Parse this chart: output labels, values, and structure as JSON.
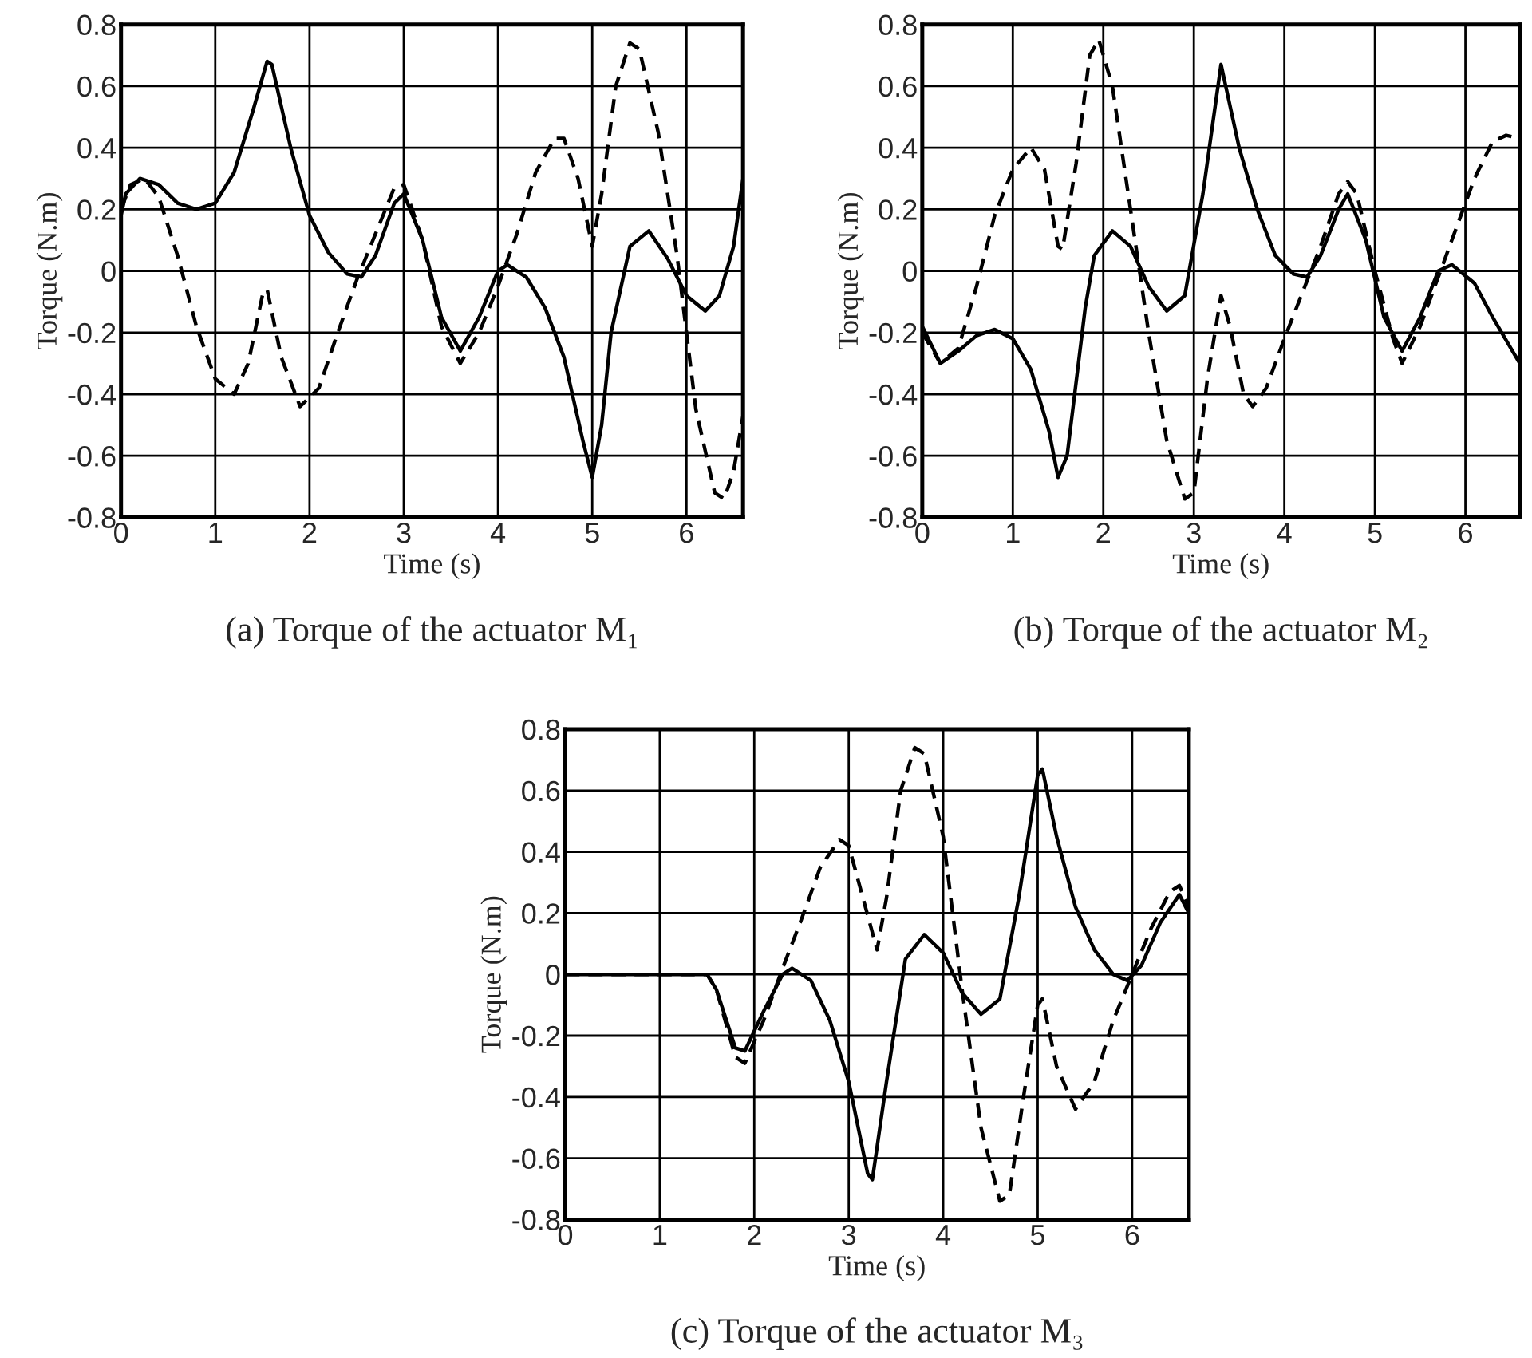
{
  "chart_data": [
    {
      "type": "line",
      "title": "(a) Torque of the actuator M₁",
      "xlabel": "Time (s)",
      "ylabel": "Torque (N.m)",
      "xlim": [
        0,
        6.6
      ],
      "ylim": [
        -0.8,
        0.8
      ],
      "xticks": [
        0,
        1,
        2,
        3,
        4,
        5,
        6
      ],
      "yticks": [
        -0.8,
        -0.6,
        -0.4,
        -0.2,
        0,
        0.2,
        0.4,
        0.6,
        0.8
      ],
      "grid": true,
      "legend": false,
      "series": [
        {
          "color": "#000000",
          "line_style": "solid",
          "x": [
            0,
            0.05,
            0.2,
            0.4,
            0.6,
            0.8,
            1.0,
            1.2,
            1.4,
            1.55,
            1.6,
            1.8,
            2.0,
            2.2,
            2.4,
            2.55,
            2.7,
            2.9,
            3.0,
            3.2,
            3.4,
            3.6,
            3.8,
            4.0,
            4.1,
            4.3,
            4.5,
            4.7,
            4.9,
            5.0,
            5.1,
            5.2,
            5.4,
            5.6,
            5.8,
            6.0,
            6.2,
            6.35,
            6.5,
            6.6
          ],
          "values": [
            0.18,
            0.25,
            0.3,
            0.28,
            0.22,
            0.2,
            0.22,
            0.32,
            0.52,
            0.68,
            0.67,
            0.4,
            0.18,
            0.06,
            -0.01,
            -0.02,
            0.05,
            0.22,
            0.25,
            0.1,
            -0.15,
            -0.26,
            -0.15,
            0.0,
            0.02,
            -0.02,
            -0.12,
            -0.28,
            -0.55,
            -0.67,
            -0.5,
            -0.2,
            0.08,
            0.13,
            0.04,
            -0.08,
            -0.13,
            -0.08,
            0.08,
            0.3
          ]
        },
        {
          "color": "#000000",
          "line_style": "dashed",
          "x": [
            0,
            0.1,
            0.25,
            0.4,
            0.6,
            0.8,
            1.0,
            1.2,
            1.35,
            1.5,
            1.55,
            1.7,
            1.9,
            2.1,
            2.3,
            2.5,
            2.7,
            2.9,
            3.0,
            3.2,
            3.4,
            3.6,
            3.8,
            4.0,
            4.2,
            4.4,
            4.6,
            4.7,
            4.85,
            5.0,
            5.1,
            5.25,
            5.4,
            5.5,
            5.7,
            5.9,
            6.1,
            6.3,
            6.4,
            6.5,
            6.6
          ],
          "values": [
            0.2,
            0.28,
            0.3,
            0.24,
            0.05,
            -0.18,
            -0.35,
            -0.4,
            -0.3,
            -0.08,
            -0.06,
            -0.28,
            -0.44,
            -0.38,
            -0.2,
            -0.03,
            0.12,
            0.27,
            0.28,
            0.1,
            -0.18,
            -0.3,
            -0.2,
            -0.05,
            0.12,
            0.32,
            0.43,
            0.43,
            0.3,
            0.08,
            0.25,
            0.6,
            0.74,
            0.72,
            0.45,
            0.05,
            -0.45,
            -0.72,
            -0.74,
            -0.65,
            -0.47
          ]
        }
      ]
    },
    {
      "type": "line",
      "title": "(b) Torque of the actuator M₂",
      "xlabel": "Time (s)",
      "ylabel": "Torque (N.m)",
      "xlim": [
        0,
        6.6
      ],
      "ylim": [
        -0.8,
        0.8
      ],
      "xticks": [
        0,
        1,
        2,
        3,
        4,
        5,
        6
      ],
      "yticks": [
        -0.8,
        -0.6,
        -0.4,
        -0.2,
        0,
        0.2,
        0.4,
        0.6,
        0.8
      ],
      "grid": true,
      "legend": false,
      "series": [
        {
          "color": "#000000",
          "line_style": "solid",
          "x": [
            0,
            0.2,
            0.4,
            0.6,
            0.8,
            1.0,
            1.2,
            1.4,
            1.5,
            1.6,
            1.8,
            1.9,
            2.1,
            2.3,
            2.5,
            2.7,
            2.9,
            3.1,
            3.3,
            3.5,
            3.7,
            3.9,
            4.1,
            4.25,
            4.4,
            4.6,
            4.7,
            4.9,
            5.1,
            5.3,
            5.5,
            5.7,
            5.85,
            6.1,
            6.3,
            6.5,
            6.6
          ],
          "values": [
            -0.18,
            -0.3,
            -0.26,
            -0.21,
            -0.19,
            -0.22,
            -0.32,
            -0.52,
            -0.67,
            -0.6,
            -0.12,
            0.05,
            0.13,
            0.08,
            -0.05,
            -0.13,
            -0.08,
            0.25,
            0.67,
            0.4,
            0.2,
            0.05,
            -0.01,
            -0.02,
            0.05,
            0.2,
            0.25,
            0.1,
            -0.15,
            -0.26,
            -0.15,
            0.0,
            0.02,
            -0.04,
            -0.15,
            -0.25,
            -0.3
          ]
        },
        {
          "color": "#000000",
          "line_style": "dashed",
          "x": [
            0,
            0.2,
            0.4,
            0.6,
            0.8,
            1.0,
            1.2,
            1.35,
            1.5,
            1.55,
            1.7,
            1.85,
            1.95,
            2.1,
            2.3,
            2.5,
            2.7,
            2.9,
            3.0,
            3.15,
            3.3,
            3.4,
            3.55,
            3.65,
            3.8,
            4.0,
            4.2,
            4.4,
            4.6,
            4.7,
            4.8,
            5.0,
            5.2,
            5.3,
            5.5,
            5.7,
            5.9,
            6.1,
            6.3,
            6.45,
            6.6
          ],
          "values": [
            -0.2,
            -0.3,
            -0.25,
            -0.05,
            0.18,
            0.33,
            0.4,
            0.33,
            0.08,
            0.07,
            0.35,
            0.7,
            0.75,
            0.6,
            0.2,
            -0.2,
            -0.55,
            -0.74,
            -0.72,
            -0.35,
            -0.08,
            -0.18,
            -0.4,
            -0.44,
            -0.38,
            -0.22,
            -0.07,
            0.08,
            0.25,
            0.29,
            0.25,
            0.0,
            -0.22,
            -0.3,
            -0.18,
            -0.02,
            0.14,
            0.3,
            0.42,
            0.44,
            0.43
          ]
        }
      ]
    },
    {
      "type": "line",
      "title": "(c) Torque of the actuator M₃",
      "xlabel": "Time (s)",
      "ylabel": "Torque (N.m)",
      "xlim": [
        0,
        6.6
      ],
      "ylim": [
        -0.8,
        0.8
      ],
      "xticks": [
        0,
        1,
        2,
        3,
        4,
        5,
        6
      ],
      "yticks": [
        -0.8,
        -0.6,
        -0.4,
        -0.2,
        0,
        0.2,
        0.4,
        0.6,
        0.8
      ],
      "grid": true,
      "legend": false,
      "series": [
        {
          "color": "#000000",
          "line_style": "solid",
          "x": [
            0,
            1.5,
            1.6,
            1.8,
            1.9,
            2.1,
            2.3,
            2.4,
            2.6,
            2.8,
            3.0,
            3.2,
            3.25,
            3.4,
            3.6,
            3.8,
            4.0,
            4.2,
            4.4,
            4.6,
            4.8,
            5.0,
            5.05,
            5.2,
            5.4,
            5.6,
            5.8,
            5.95,
            6.1,
            6.3,
            6.5,
            6.6
          ],
          "values": [
            0,
            0,
            -0.05,
            -0.24,
            -0.25,
            -0.12,
            0.0,
            0.02,
            -0.02,
            -0.15,
            -0.35,
            -0.65,
            -0.67,
            -0.35,
            0.05,
            0.13,
            0.07,
            -0.06,
            -0.13,
            -0.08,
            0.25,
            0.65,
            0.67,
            0.45,
            0.22,
            0.08,
            0.0,
            -0.02,
            0.03,
            0.17,
            0.26,
            0.2
          ]
        },
        {
          "color": "#000000",
          "line_style": "dashed",
          "x": [
            0,
            1.5,
            1.6,
            1.8,
            1.9,
            2.1,
            2.3,
            2.5,
            2.7,
            2.9,
            3.0,
            3.15,
            3.3,
            3.4,
            3.55,
            3.7,
            3.8,
            4.0,
            4.2,
            4.4,
            4.6,
            4.7,
            4.85,
            5.0,
            5.05,
            5.2,
            5.4,
            5.6,
            5.8,
            6.0,
            6.2,
            6.4,
            6.5,
            6.6
          ],
          "values": [
            0,
            0,
            -0.05,
            -0.27,
            -0.29,
            -0.15,
            0.02,
            0.18,
            0.35,
            0.44,
            0.42,
            0.25,
            0.08,
            0.25,
            0.6,
            0.74,
            0.72,
            0.45,
            -0.05,
            -0.5,
            -0.74,
            -0.72,
            -0.4,
            -0.1,
            -0.08,
            -0.3,
            -0.44,
            -0.35,
            -0.15,
            0.0,
            0.15,
            0.27,
            0.29,
            0.22
          ]
        }
      ]
    }
  ]
}
